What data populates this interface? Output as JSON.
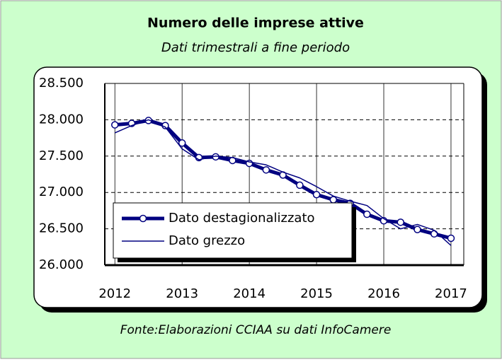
{
  "chart_data": {
    "type": "line",
    "title": "Numero delle imprese attive",
    "subtitle": "Dati trimestrali a fine periodo",
    "source": "Fonte:Elaborazioni CCIAA su dati InfoCamere",
    "x": [
      2012,
      2012.25,
      2012.5,
      2012.75,
      2013,
      2013.25,
      2013.5,
      2013.75,
      2014,
      2014.25,
      2014.5,
      2014.75,
      2015,
      2015.25,
      2015.5,
      2015.75,
      2016,
      2016.25,
      2016.5,
      2016.75,
      2017
    ],
    "series": [
      {
        "name": "Dato destagionalizzato",
        "color": "#000080",
        "markers": true,
        "values": [
          27930,
          27950,
          27990,
          27920,
          27680,
          27480,
          27490,
          27440,
          27400,
          27310,
          27240,
          27100,
          26970,
          26900,
          26850,
          26700,
          26610,
          26590,
          26490,
          26430,
          26370
        ]
      },
      {
        "name": "Dato grezzo",
        "color": "#000080",
        "markers": false,
        "values": [
          27820,
          27920,
          28000,
          27900,
          27600,
          27450,
          27500,
          27480,
          27420,
          27380,
          27280,
          27200,
          27080,
          26950,
          26880,
          26820,
          26640,
          26500,
          26560,
          26480,
          26270
        ]
      }
    ],
    "xlim": [
      2011.85,
      2017.19
    ],
    "xticks": [
      2012,
      2013,
      2014,
      2015,
      2016,
      2017
    ],
    "ylim": [
      26000,
      28500
    ],
    "yticks": [
      {
        "value": 26000,
        "label": "26.000"
      },
      {
        "value": 26500,
        "label": "26.500"
      },
      {
        "value": 27000,
        "label": "27.000"
      },
      {
        "value": 27500,
        "label": "27.500"
      },
      {
        "value": 28000,
        "label": "28.000"
      },
      {
        "value": 28500,
        "label": "28.500"
      }
    ],
    "grid": true,
    "legend": "lower left"
  }
}
